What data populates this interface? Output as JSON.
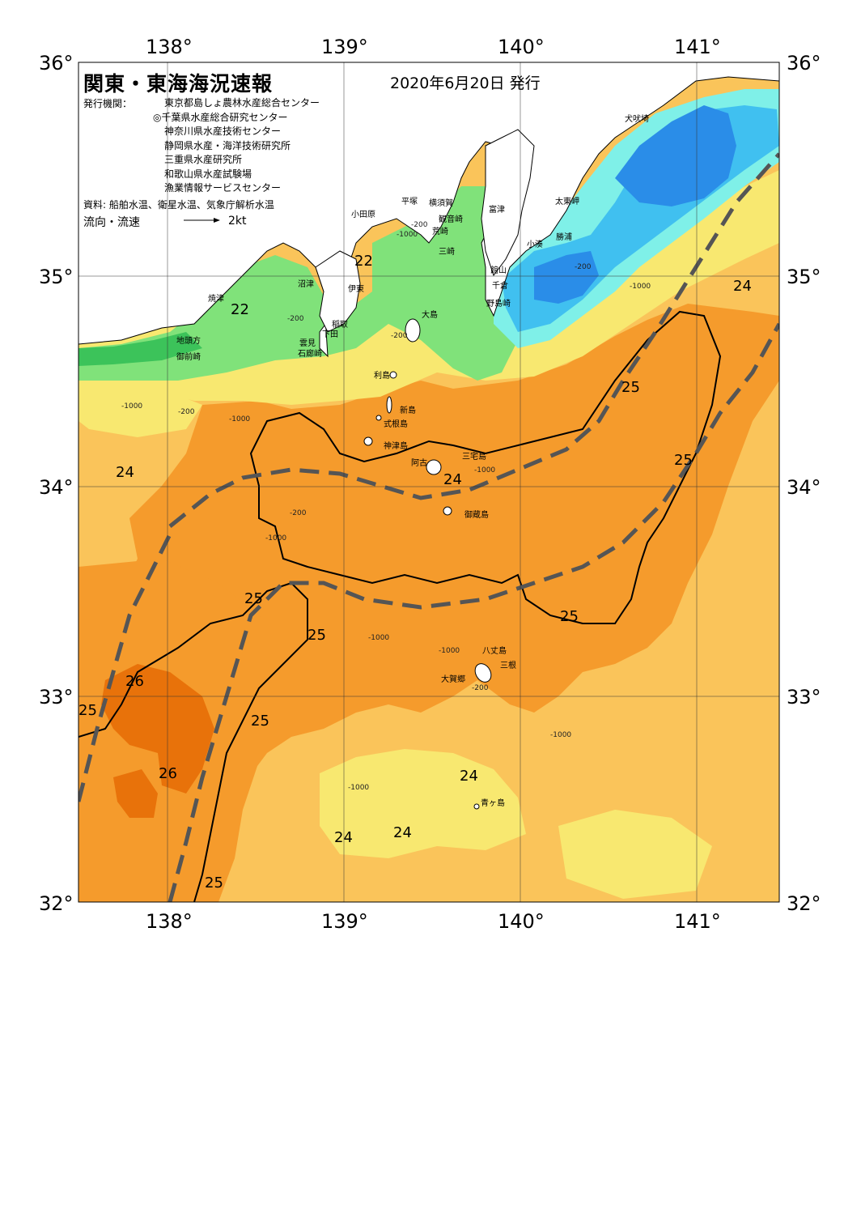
{
  "header": {
    "title": "関東・東海海況速報",
    "issued": "2020年6月20日 発行",
    "org_key": "発行機関：",
    "orgs": [
      "東京都島しょ農林水産総合センター",
      "◎千葉県水産総合研究センター",
      "神奈川県水産技術センター",
      "静岡県水産・海洋技術研究所",
      "三重県水産研究所",
      "和歌山県水産試験場",
      "漁業情報サービスセンター"
    ],
    "source": "資料: 船舶水温、衛星水温、気象庁解析水温",
    "flow_label": "流向・流速",
    "scale_label": "2kt"
  },
  "axes": {
    "lon_labels": [
      "138°",
      "139°",
      "140°",
      "141°"
    ],
    "lat_labels": [
      "36°",
      "35°",
      "34°",
      "33°",
      "32°"
    ]
  },
  "colors": {
    "water_26": "#e8720a",
    "water_25": "#f59b2c",
    "water_24": "#fac45a",
    "water_23": "#f8e870",
    "water_22": "#80e27a",
    "water_21": "#3cc35a",
    "water_20": "#7ff0e8",
    "water_19": "#40c0f0",
    "water_18": "#2a8de8",
    "land": "#ffffff",
    "kuroshio_axis": "#555555"
  },
  "place_names": [
    {
      "id": "inubosaki",
      "text": "犬吠埼"
    },
    {
      "id": "taitomisaki",
      "text": "太東岬"
    },
    {
      "id": "katsuura",
      "text": "勝浦"
    },
    {
      "id": "kominato",
      "text": "小湊"
    },
    {
      "id": "futtsu",
      "text": "富津"
    },
    {
      "id": "yokosuka",
      "text": "横須賀"
    },
    {
      "id": "kannonzaki",
      "text": "観音崎"
    },
    {
      "id": "arasaki",
      "text": "荒崎"
    },
    {
      "id": "misaki",
      "text": "三崎"
    },
    {
      "id": "tateyama",
      "text": "館山"
    },
    {
      "id": "chikura",
      "text": "千倉"
    },
    {
      "id": "nojimazaki",
      "text": "野島崎"
    },
    {
      "id": "hiratsuka",
      "text": "平塚"
    },
    {
      "id": "odawara",
      "text": "小田原"
    },
    {
      "id": "numazu",
      "text": "沼津"
    },
    {
      "id": "ito",
      "text": "伊東"
    },
    {
      "id": "yaizu",
      "text": "焼津"
    },
    {
      "id": "jitokata",
      "text": "地頭方"
    },
    {
      "id": "omaezaki",
      "text": "御前崎"
    },
    {
      "id": "inatori",
      "text": "稲取"
    },
    {
      "id": "shimoda",
      "text": "下田"
    },
    {
      "id": "kumomi",
      "text": "雲見"
    },
    {
      "id": "irozaki",
      "text": "石廊崎"
    },
    {
      "id": "oshima",
      "text": "大島"
    },
    {
      "id": "toshima",
      "text": "利島"
    },
    {
      "id": "niijima",
      "text": "新島"
    },
    {
      "id": "shikinejima",
      "text": "式根島"
    },
    {
      "id": "kozushima",
      "text": "神津島"
    },
    {
      "id": "miyakejima",
      "text": "三宅島"
    },
    {
      "id": "ako",
      "text": "阿古"
    },
    {
      "id": "mikurajima",
      "text": "御蔵島"
    },
    {
      "id": "hachijojima",
      "text": "八丈島"
    },
    {
      "id": "mitsune",
      "text": "三根"
    },
    {
      "id": "okago",
      "text": "大賀郷"
    },
    {
      "id": "aogashima",
      "text": "青ヶ島"
    }
  ],
  "temp_labels": [
    "22",
    "22",
    "24",
    "24",
    "25",
    "25",
    "24",
    "25",
    "25",
    "25",
    "25",
    "25",
    "26",
    "26",
    "24",
    "24",
    "24",
    "25",
    "25"
  ],
  "depth_labels": [
    "-1000",
    "-200",
    "-200",
    "-1000",
    "-1000",
    "-200",
    "-200",
    "-200",
    "-1000",
    "-1000",
    "-200",
    "-1000",
    "-1000",
    "-1000",
    "-200",
    "-1000",
    "-1000"
  ]
}
